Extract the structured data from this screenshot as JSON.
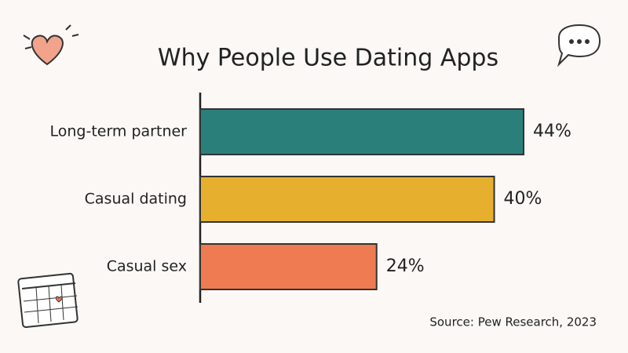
{
  "chart_data": {
    "type": "bar",
    "orientation": "horizontal",
    "title": "Why People Use Dating Apps",
    "categories": [
      "Long-term partner",
      "Casual dating",
      "Casual sex"
    ],
    "values": [
      44,
      40,
      24
    ],
    "value_labels": [
      "44%",
      "40%",
      "24%"
    ],
    "colors": [
      "#2b7f7b",
      "#e6b02e",
      "#ee7b52"
    ],
    "source": "Source: Pew Research, 2023"
  }
}
